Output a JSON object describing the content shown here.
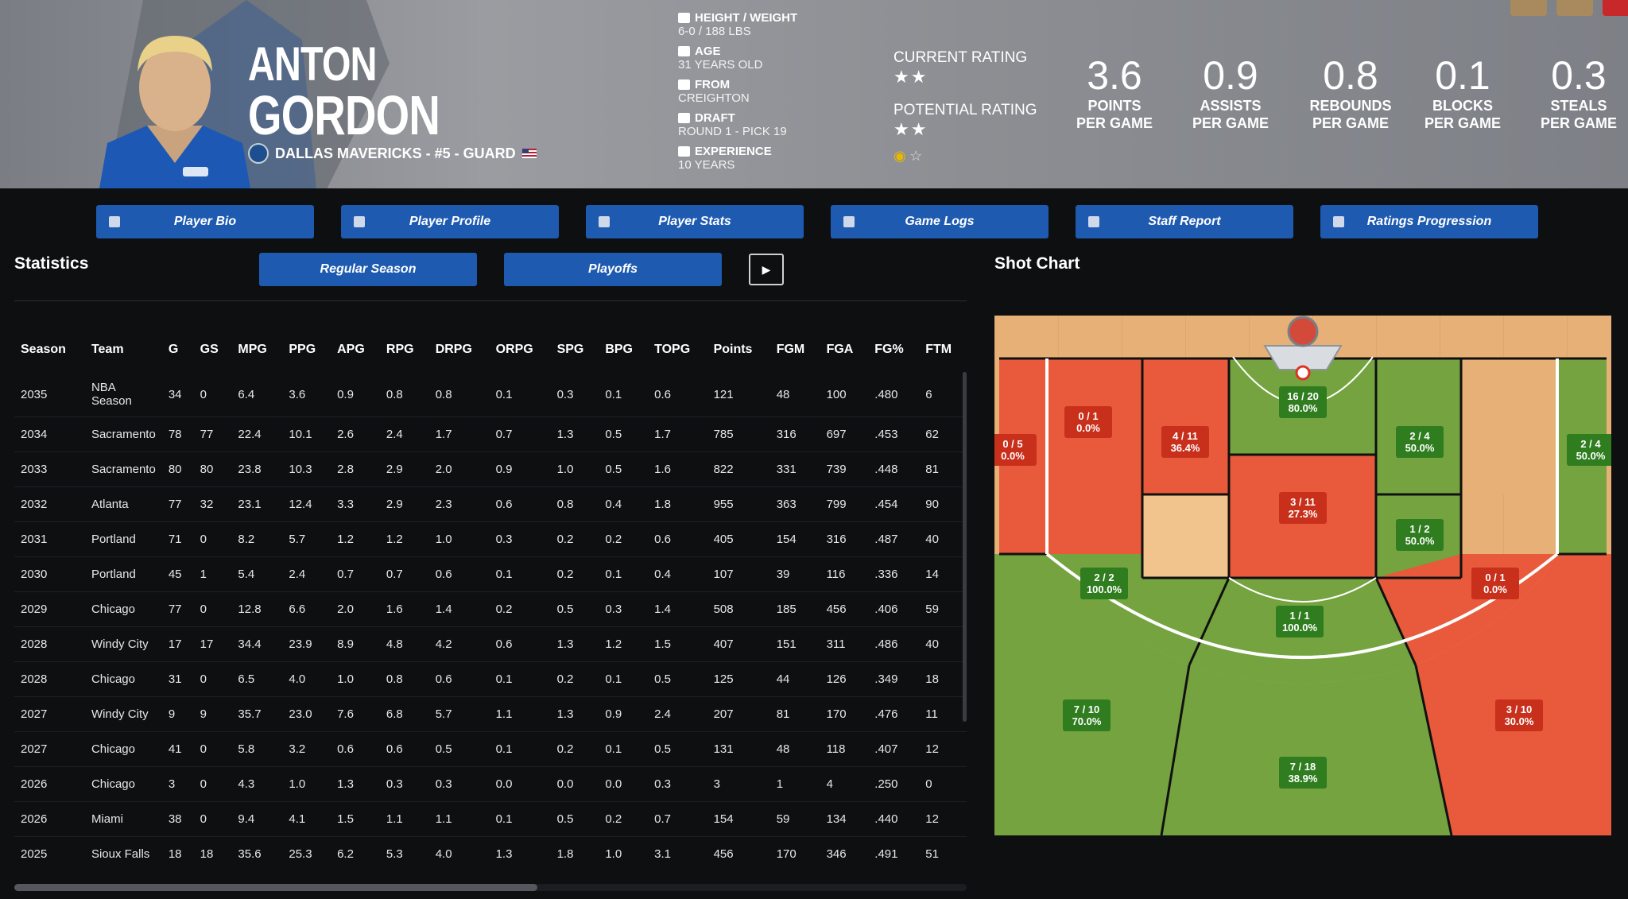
{
  "player": {
    "first_name": "ANTON",
    "last_name": "GORDON",
    "team_line": "DALLAS MAVERICKS - #5 - GUARD"
  },
  "info": [
    {
      "label": "HEIGHT / WEIGHT",
      "value": "6-0 / 188 LBS",
      "icon": "ruler-icon"
    },
    {
      "label": "AGE",
      "value": "31 YEARS OLD",
      "icon": "cake-icon"
    },
    {
      "label": "FROM",
      "value": "CREIGHTON",
      "icon": "school-icon"
    },
    {
      "label": "DRAFT",
      "value": "ROUND 1 - PICK 19",
      "icon": "hash-icon"
    },
    {
      "label": "EXPERIENCE",
      "value": "10 YEARS",
      "icon": "people-icon"
    }
  ],
  "ratings": {
    "current_label": "CURRENT RATING",
    "current_stars": "★★",
    "potential_label": "POTENTIAL RATING",
    "potential_stars": "★★"
  },
  "per_game": [
    {
      "value": "3.6",
      "caption1": "POINTS",
      "caption2": "PER GAME"
    },
    {
      "value": "0.9",
      "caption1": "ASSISTS",
      "caption2": "PER GAME"
    },
    {
      "value": "0.8",
      "caption1": "REBOUNDS",
      "caption2": "PER GAME"
    },
    {
      "value": "0.1",
      "caption1": "BLOCKS",
      "caption2": "PER GAME"
    },
    {
      "value": "0.3",
      "caption1": "STEALS",
      "caption2": "PER GAME"
    }
  ],
  "tabs": [
    "Player Bio",
    "Player Profile",
    "Player Stats",
    "Game Logs",
    "Staff Report",
    "Ratings Progression"
  ],
  "statistics_title": "Statistics",
  "subtabs": [
    "Regular Season",
    "Playoffs"
  ],
  "shot_chart_title": "Shot Chart",
  "table": {
    "headers": [
      "Season",
      "Team",
      "G",
      "GS",
      "MPG",
      "PPG",
      "APG",
      "RPG",
      "DRPG",
      "ORPG",
      "SPG",
      "BPG",
      "TOPG",
      "Points",
      "FGM",
      "FGA",
      "FG%",
      "FTM"
    ],
    "rows": [
      [
        "2035",
        "NBA Season",
        "34",
        "0",
        "6.4",
        "3.6",
        "0.9",
        "0.8",
        "0.8",
        "0.1",
        "0.3",
        "0.1",
        "0.6",
        "121",
        "48",
        "100",
        ".480",
        "6"
      ],
      [
        "2034",
        "Sacramento",
        "78",
        "77",
        "22.4",
        "10.1",
        "2.6",
        "2.4",
        "1.7",
        "0.7",
        "1.3",
        "0.5",
        "1.7",
        "785",
        "316",
        "697",
        ".453",
        "62"
      ],
      [
        "2033",
        "Sacramento",
        "80",
        "80",
        "23.8",
        "10.3",
        "2.8",
        "2.9",
        "2.0",
        "0.9",
        "1.0",
        "0.5",
        "1.6",
        "822",
        "331",
        "739",
        ".448",
        "81"
      ],
      [
        "2032",
        "Atlanta",
        "77",
        "32",
        "23.1",
        "12.4",
        "3.3",
        "2.9",
        "2.3",
        "0.6",
        "0.8",
        "0.4",
        "1.8",
        "955",
        "363",
        "799",
        ".454",
        "90"
      ],
      [
        "2031",
        "Portland",
        "71",
        "0",
        "8.2",
        "5.7",
        "1.2",
        "1.2",
        "1.0",
        "0.3",
        "0.2",
        "0.2",
        "0.6",
        "405",
        "154",
        "316",
        ".487",
        "40"
      ],
      [
        "2030",
        "Portland",
        "45",
        "1",
        "5.4",
        "2.4",
        "0.7",
        "0.7",
        "0.6",
        "0.1",
        "0.2",
        "0.1",
        "0.4",
        "107",
        "39",
        "116",
        ".336",
        "14"
      ],
      [
        "2029",
        "Chicago",
        "77",
        "0",
        "12.8",
        "6.6",
        "2.0",
        "1.6",
        "1.4",
        "0.2",
        "0.5",
        "0.3",
        "1.4",
        "508",
        "185",
        "456",
        ".406",
        "59"
      ],
      [
        "2028",
        "Windy City",
        "17",
        "17",
        "34.4",
        "23.9",
        "8.9",
        "4.8",
        "4.2",
        "0.6",
        "1.3",
        "1.2",
        "1.5",
        "407",
        "151",
        "311",
        ".486",
        "40"
      ],
      [
        "2028",
        "Chicago",
        "31",
        "0",
        "6.5",
        "4.0",
        "1.0",
        "0.8",
        "0.6",
        "0.1",
        "0.2",
        "0.1",
        "0.5",
        "125",
        "44",
        "126",
        ".349",
        "18"
      ],
      [
        "2027",
        "Windy City",
        "9",
        "9",
        "35.7",
        "23.0",
        "7.6",
        "6.8",
        "5.7",
        "1.1",
        "1.3",
        "0.9",
        "2.4",
        "207",
        "81",
        "170",
        ".476",
        "11"
      ],
      [
        "2027",
        "Chicago",
        "41",
        "0",
        "5.8",
        "3.2",
        "0.6",
        "0.6",
        "0.5",
        "0.1",
        "0.2",
        "0.1",
        "0.5",
        "131",
        "48",
        "118",
        ".407",
        "12"
      ],
      [
        "2026",
        "Chicago",
        "3",
        "0",
        "4.3",
        "1.0",
        "1.3",
        "0.3",
        "0.3",
        "0.0",
        "0.0",
        "0.0",
        "0.3",
        "3",
        "1",
        "4",
        ".250",
        "0"
      ],
      [
        "2026",
        "Miami",
        "38",
        "0",
        "9.4",
        "4.1",
        "1.5",
        "1.1",
        "1.1",
        "0.1",
        "0.5",
        "0.2",
        "0.7",
        "154",
        "59",
        "134",
        ".440",
        "12"
      ],
      [
        "2025",
        "Sioux Falls",
        "18",
        "18",
        "35.6",
        "25.3",
        "6.2",
        "5.3",
        "4.0",
        "1.3",
        "1.8",
        "1.0",
        "3.1",
        "456",
        "170",
        "346",
        ".491",
        "51"
      ]
    ]
  },
  "shot_zones": {
    "left_corner": {
      "line1": "0 / 5",
      "line2": "0.0%"
    },
    "left_short_baseline": {
      "line1": "0 / 1",
      "line2": "0.0%"
    },
    "left_block": {
      "line1": "4 / 11",
      "line2": "36.4%"
    },
    "restricted_area": {
      "line1": "16 / 20",
      "line2": "80.0%"
    },
    "right_block": {
      "line1": "2 / 4",
      "line2": "50.0%"
    },
    "right_corner": {
      "line1": "2 / 4",
      "line2": "50.0%"
    },
    "paint": {
      "line1": "3 / 11",
      "line2": "27.3%"
    },
    "right_elbow": {
      "line1": "1 / 2",
      "line2": "50.0%"
    },
    "left_midrange": {
      "line1": "2 / 2",
      "line2": "100.0%"
    },
    "right_midrange": {
      "line1": "0 / 1",
      "line2": "0.0%"
    },
    "top_key": {
      "line1": "1 / 1",
      "line2": "100.0%"
    },
    "left_wing_three": {
      "line1": "7 / 10",
      "line2": "70.0%"
    },
    "right_wing_three": {
      "line1": "3 / 10",
      "line2": "30.0%"
    },
    "top_three": {
      "line1": "7 / 18",
      "line2": "38.9%"
    }
  },
  "colors": {
    "tab_blue": "#1e5bb0",
    "hot": "#e8563a",
    "cold_green": "#6f9e3a",
    "wood": "#e3ae70",
    "zone_green_label": "#2f7d1f",
    "zone_red_label": "#c8301c"
  }
}
